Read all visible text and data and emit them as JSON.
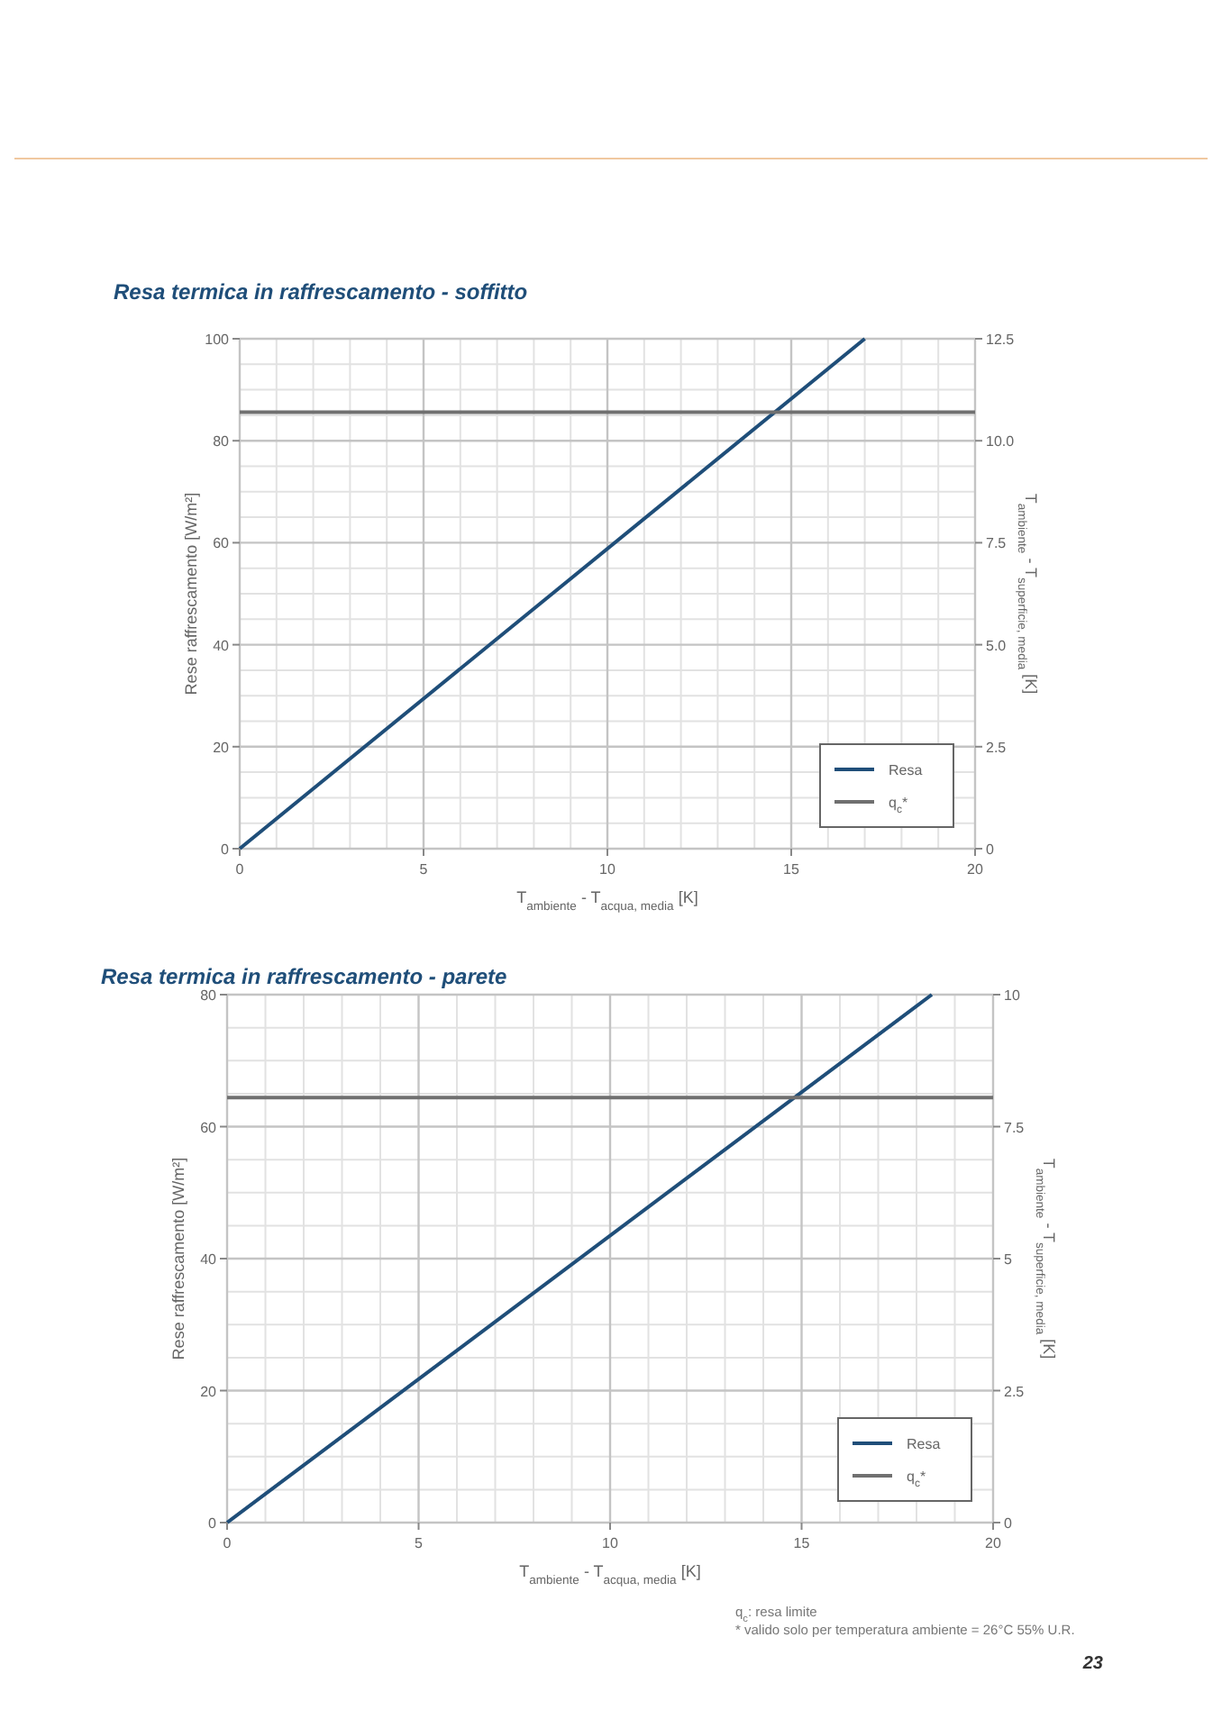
{
  "chart_data": [
    {
      "type": "line",
      "title": "Resa termica in raffrescamento - soffitto",
      "xlabel": "T$_{ambiente}$ - T$_{acqua, media}$ [K]",
      "ylabel": "Rese raffrescamento [W/m²]",
      "y2label": "T$_{ambiente}$ - T$_{superficie, media}$ [K]",
      "series": [
        {
          "name": "Resa",
          "color": "#1f4e79",
          "x": [
            0,
            17
          ],
          "values": [
            0,
            100
          ]
        },
        {
          "name": "q$_{c}$*",
          "color": "#707070",
          "x": [
            0,
            20
          ],
          "values": [
            85.6,
            85.6
          ]
        }
      ],
      "xlim": [
        0,
        20
      ],
      "xticks": [
        0,
        5,
        10,
        15,
        20
      ],
      "ylim": [
        0,
        100
      ],
      "yticks": [
        0,
        20,
        40,
        60,
        80,
        100
      ],
      "y2lim": [
        0,
        12.5
      ],
      "y2ticks": [
        0,
        2.5,
        {
          "value": 5,
          "label": "5.0"
        },
        7.5,
        {
          "value": 10,
          "label": "10.0"
        },
        12.5
      ],
      "grid": true,
      "legend": "bottom right",
      "marker": "none",
      "line_style": "solid"
    },
    {
      "type": "line",
      "title": "Resa termica in raffrescamento - parete",
      "xlabel": "T$_{ambiente}$ - T$_{acqua, media}$ [K]",
      "ylabel": "Rese raffrescamento [W/m²]",
      "y2label": "T$_{ambiente}$ - T$_{superficie, media}$ [K]",
      "series": [
        {
          "name": "Resa",
          "color": "#1f4e79",
          "x": [
            0,
            18.4
          ],
          "values": [
            0,
            80
          ]
        },
        {
          "name": "q$_{c}$*",
          "color": "#707070",
          "x": [
            0,
            20
          ],
          "values": [
            64.4,
            64.4
          ]
        }
      ],
      "xlim": [
        0,
        20
      ],
      "xticks": [
        0,
        5,
        10,
        15,
        20
      ],
      "ylim": [
        0,
        80
      ],
      "yticks": [
        0,
        20,
        40,
        60,
        80
      ],
      "y2lim": [
        0,
        10
      ],
      "y2ticks": [
        0,
        2.5,
        5,
        7.5,
        10
      ],
      "grid": true,
      "legend": "bottom right",
      "marker": "none",
      "line_style": "solid",
      "annotations": [
        "q$_{c}$: resa limite",
        "* valido solo per temperatura ambiente = 26°C 55% U.R.",
        "23"
      ]
    }
  ]
}
